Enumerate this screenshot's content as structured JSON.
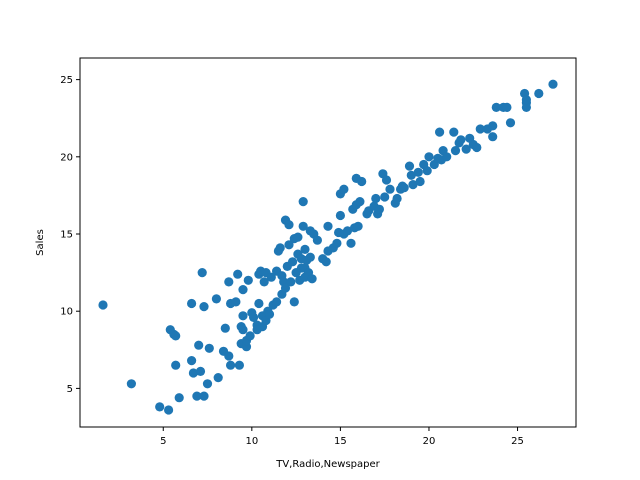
{
  "chart_data": {
    "type": "scatter",
    "xlabel": "TV,Radio,Newspaper",
    "ylabel": "Sales",
    "xlim": [
      0.3,
      28.3
    ],
    "ylim": [
      2.5,
      26.4
    ],
    "xticks": [
      5,
      10,
      15,
      20,
      25
    ],
    "yticks": [
      5,
      10,
      15,
      20,
      25
    ],
    "grid": false,
    "marker_color": "#1f77b4",
    "points": [
      [
        1.6,
        10.4
      ],
      [
        3.2,
        5.3
      ],
      [
        4.8,
        3.8
      ],
      [
        5.3,
        3.6
      ],
      [
        5.4,
        8.8
      ],
      [
        5.6,
        8.5
      ],
      [
        5.7,
        8.4
      ],
      [
        5.7,
        6.5
      ],
      [
        5.9,
        4.4
      ],
      [
        6.6,
        10.5
      ],
      [
        6.6,
        6.8
      ],
      [
        6.7,
        6.0
      ],
      [
        6.9,
        4.5
      ],
      [
        7.0,
        7.8
      ],
      [
        7.1,
        6.1
      ],
      [
        7.2,
        12.5
      ],
      [
        7.3,
        10.3
      ],
      [
        7.3,
        4.5
      ],
      [
        7.5,
        5.3
      ],
      [
        7.6,
        7.6
      ],
      [
        8.0,
        10.8
      ],
      [
        8.1,
        5.7
      ],
      [
        8.4,
        7.4
      ],
      [
        8.5,
        8.9
      ],
      [
        8.7,
        7.1
      ],
      [
        8.7,
        11.9
      ],
      [
        8.8,
        6.5
      ],
      [
        8.8,
        10.5
      ],
      [
        9.1,
        10.6
      ],
      [
        9.2,
        12.4
      ],
      [
        9.3,
        6.5
      ],
      [
        9.4,
        7.9
      ],
      [
        9.4,
        9.0
      ],
      [
        9.5,
        11.4
      ],
      [
        9.5,
        9.7
      ],
      [
        9.5,
        8.8
      ],
      [
        9.7,
        7.7
      ],
      [
        9.7,
        8.1
      ],
      [
        9.8,
        12.0
      ],
      [
        9.9,
        8.4
      ],
      [
        10.0,
        9.9
      ],
      [
        10.1,
        9.6
      ],
      [
        10.3,
        9.1
      ],
      [
        10.3,
        8.8
      ],
      [
        10.4,
        10.5
      ],
      [
        10.4,
        12.4
      ],
      [
        10.5,
        12.6
      ],
      [
        10.6,
        9.7
      ],
      [
        10.6,
        9.0
      ],
      [
        10.7,
        11.9
      ],
      [
        10.8,
        12.5
      ],
      [
        10.8,
        9.4
      ],
      [
        10.9,
        10.0
      ],
      [
        11.0,
        9.8
      ],
      [
        11.1,
        12.2
      ],
      [
        11.2,
        10.4
      ],
      [
        11.4,
        10.6
      ],
      [
        11.4,
        12.6
      ],
      [
        11.5,
        13.9
      ],
      [
        11.6,
        14.1
      ],
      [
        11.7,
        11.1
      ],
      [
        11.7,
        12.3
      ],
      [
        11.8,
        11.9
      ],
      [
        11.9,
        15.9
      ],
      [
        11.9,
        11.5
      ],
      [
        12.0,
        12.9
      ],
      [
        12.1,
        15.6
      ],
      [
        12.1,
        14.3
      ],
      [
        12.2,
        11.9
      ],
      [
        12.3,
        13.2
      ],
      [
        12.4,
        10.6
      ],
      [
        12.4,
        14.7
      ],
      [
        12.5,
        12.5
      ],
      [
        12.6,
        14.8
      ],
      [
        12.6,
        13.7
      ],
      [
        12.7,
        12.0
      ],
      [
        12.8,
        12.8
      ],
      [
        12.8,
        13.4
      ],
      [
        12.9,
        17.1
      ],
      [
        12.9,
        15.5
      ],
      [
        13.0,
        12.2
      ],
      [
        13.0,
        12.8
      ],
      [
        13.0,
        14.0
      ],
      [
        13.1,
        13.3
      ],
      [
        13.2,
        12.5
      ],
      [
        13.3,
        13.5
      ],
      [
        13.3,
        15.2
      ],
      [
        13.4,
        12.1
      ],
      [
        13.5,
        15.0
      ],
      [
        13.7,
        14.6
      ],
      [
        14.0,
        13.4
      ],
      [
        14.2,
        13.2
      ],
      [
        14.3,
        15.5
      ],
      [
        14.3,
        13.9
      ],
      [
        14.6,
        14.1
      ],
      [
        14.8,
        14.4
      ],
      [
        14.9,
        15.1
      ],
      [
        15.0,
        16.2
      ],
      [
        15.0,
        17.6
      ],
      [
        15.2,
        17.9
      ],
      [
        15.2,
        15.0
      ],
      [
        15.4,
        15.2
      ],
      [
        15.6,
        14.4
      ],
      [
        15.7,
        16.6
      ],
      [
        15.8,
        15.4
      ],
      [
        15.9,
        16.9
      ],
      [
        15.9,
        18.6
      ],
      [
        16.1,
        17.1
      ],
      [
        16.2,
        18.4
      ],
      [
        16.0,
        15.5
      ],
      [
        16.5,
        16.3
      ],
      [
        16.6,
        16.5
      ],
      [
        16.9,
        16.8
      ],
      [
        17.0,
        17.3
      ],
      [
        17.1,
        16.3
      ],
      [
        17.2,
        16.6
      ],
      [
        17.4,
        18.9
      ],
      [
        17.5,
        17.4
      ],
      [
        17.6,
        18.5
      ],
      [
        17.8,
        17.9
      ],
      [
        18.1,
        17.0
      ],
      [
        18.2,
        17.3
      ],
      [
        18.4,
        17.9
      ],
      [
        18.5,
        18.1
      ],
      [
        18.6,
        18.0
      ],
      [
        18.9,
        19.4
      ],
      [
        19.0,
        18.8
      ],
      [
        19.1,
        18.2
      ],
      [
        19.4,
        19.0
      ],
      [
        19.5,
        18.4
      ],
      [
        19.7,
        19.5
      ],
      [
        19.9,
        19.1
      ],
      [
        20.0,
        20.0
      ],
      [
        20.3,
        19.5
      ],
      [
        20.5,
        19.9
      ],
      [
        20.6,
        21.6
      ],
      [
        20.7,
        19.8
      ],
      [
        20.8,
        20.4
      ],
      [
        21.0,
        20.0
      ],
      [
        21.4,
        21.6
      ],
      [
        21.5,
        20.4
      ],
      [
        21.7,
        20.9
      ],
      [
        21.8,
        21.1
      ],
      [
        22.1,
        20.5
      ],
      [
        22.3,
        21.2
      ],
      [
        22.5,
        20.8
      ],
      [
        22.7,
        20.6
      ],
      [
        22.9,
        21.8
      ],
      [
        23.3,
        21.8
      ],
      [
        23.6,
        22.0
      ],
      [
        23.6,
        21.3
      ],
      [
        23.8,
        23.2
      ],
      [
        24.2,
        23.2
      ],
      [
        24.4,
        23.2
      ],
      [
        24.6,
        22.2
      ],
      [
        25.4,
        24.1
      ],
      [
        25.5,
        23.5
      ],
      [
        25.5,
        23.2
      ],
      [
        25.5,
        23.7
      ],
      [
        26.2,
        24.1
      ],
      [
        27.0,
        24.7
      ]
    ]
  }
}
